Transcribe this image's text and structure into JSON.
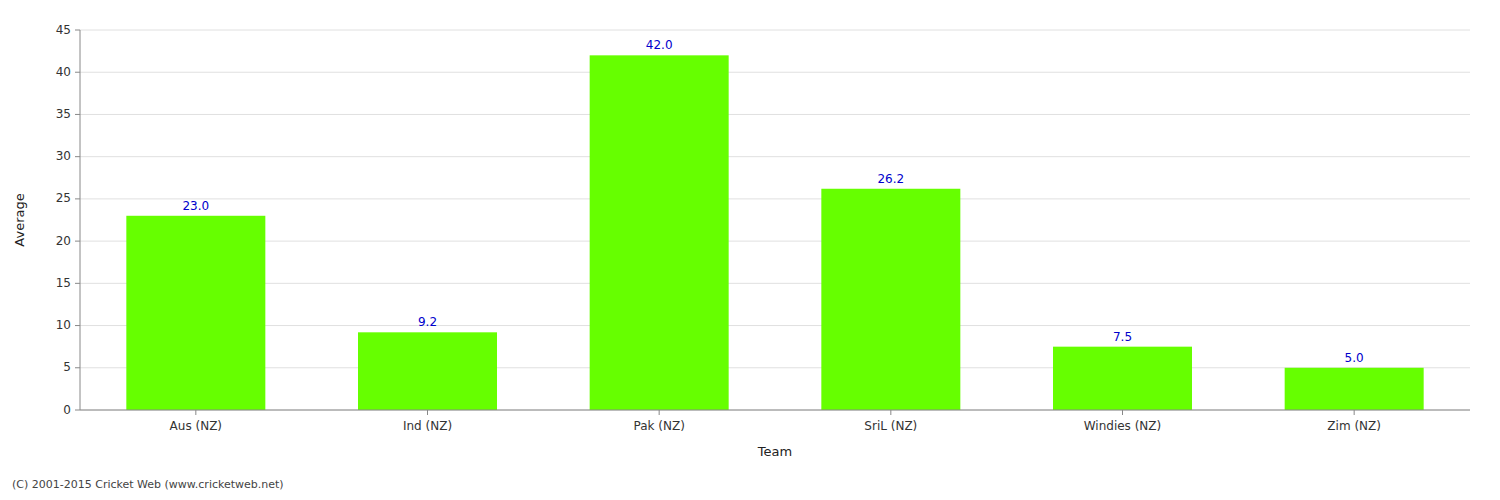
{
  "chart_data": {
    "type": "bar",
    "xlabel": "Team",
    "ylabel": "Average",
    "categories": [
      "Aus (NZ)",
      "Ind (NZ)",
      "Pak (NZ)",
      "SriL (NZ)",
      "Windies (NZ)",
      "Zim (NZ)"
    ],
    "values": [
      23.0,
      9.2,
      42.0,
      26.2,
      7.5,
      5.0
    ],
    "value_labels": [
      "23.0",
      "9.2",
      "42.0",
      "26.2",
      "7.5",
      "5.0"
    ],
    "color": "#66ff00",
    "ylim": [
      0,
      45
    ],
    "yticks": [
      0,
      5,
      10,
      15,
      20,
      25,
      30,
      35,
      40,
      45
    ],
    "grid": true,
    "data_labels": true,
    "annotations": [
      "(C) 2001-2015 Cricket Web (www.cricketweb.net)"
    ]
  }
}
